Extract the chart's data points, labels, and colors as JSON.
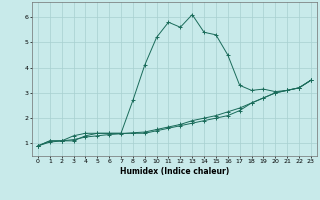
{
  "title": "",
  "xlabel": "Humidex (Indice chaleur)",
  "bg_color": "#c8eaea",
  "grid_color": "#a8d0d0",
  "line_color": "#1a6b5a",
  "xlim": [
    -0.5,
    23.5
  ],
  "ylim": [
    0.5,
    6.6
  ],
  "xticks": [
    0,
    1,
    2,
    3,
    4,
    5,
    6,
    7,
    8,
    9,
    10,
    11,
    12,
    13,
    14,
    15,
    16,
    17,
    18,
    19,
    20,
    21,
    22,
    23
  ],
  "yticks": [
    1,
    2,
    3,
    4,
    5,
    6
  ],
  "line1_x": [
    0,
    1,
    2,
    3,
    4,
    5,
    6,
    7,
    8,
    9,
    10,
    11,
    12,
    13,
    14,
    15,
    16,
    17,
    18,
    19,
    20,
    21,
    22,
    23
  ],
  "line1_y": [
    0.9,
    1.05,
    1.1,
    1.15,
    1.25,
    1.3,
    1.35,
    1.38,
    1.42,
    1.45,
    1.55,
    1.65,
    1.75,
    1.9,
    2.0,
    2.1,
    2.25,
    2.4,
    2.6,
    2.8,
    3.0,
    3.1,
    3.2,
    3.5
  ],
  "line2_x": [
    0,
    1,
    2,
    3,
    4,
    5,
    6,
    7,
    8,
    9,
    10,
    11,
    12,
    13,
    14,
    15,
    16,
    17,
    18,
    19,
    20,
    21,
    22,
    23
  ],
  "line2_y": [
    0.9,
    1.1,
    1.1,
    1.1,
    1.3,
    1.4,
    1.4,
    1.4,
    1.4,
    1.4,
    1.5,
    1.6,
    1.7,
    1.8,
    1.9,
    2.0,
    2.1,
    2.3,
    2.6,
    2.8,
    3.0,
    3.1,
    3.2,
    3.5
  ],
  "line3_x": [
    0,
    1,
    2,
    3,
    4,
    5,
    6,
    7,
    8,
    9,
    10,
    11,
    12,
    13,
    14,
    15,
    16,
    17,
    18,
    19,
    20,
    21,
    22,
    23
  ],
  "line3_y": [
    0.9,
    1.1,
    1.1,
    1.3,
    1.4,
    1.4,
    1.4,
    1.4,
    2.7,
    4.1,
    5.2,
    5.8,
    5.6,
    6.1,
    5.4,
    5.3,
    4.5,
    3.3,
    3.1,
    3.15,
    3.05,
    3.1,
    3.2,
    3.5
  ]
}
